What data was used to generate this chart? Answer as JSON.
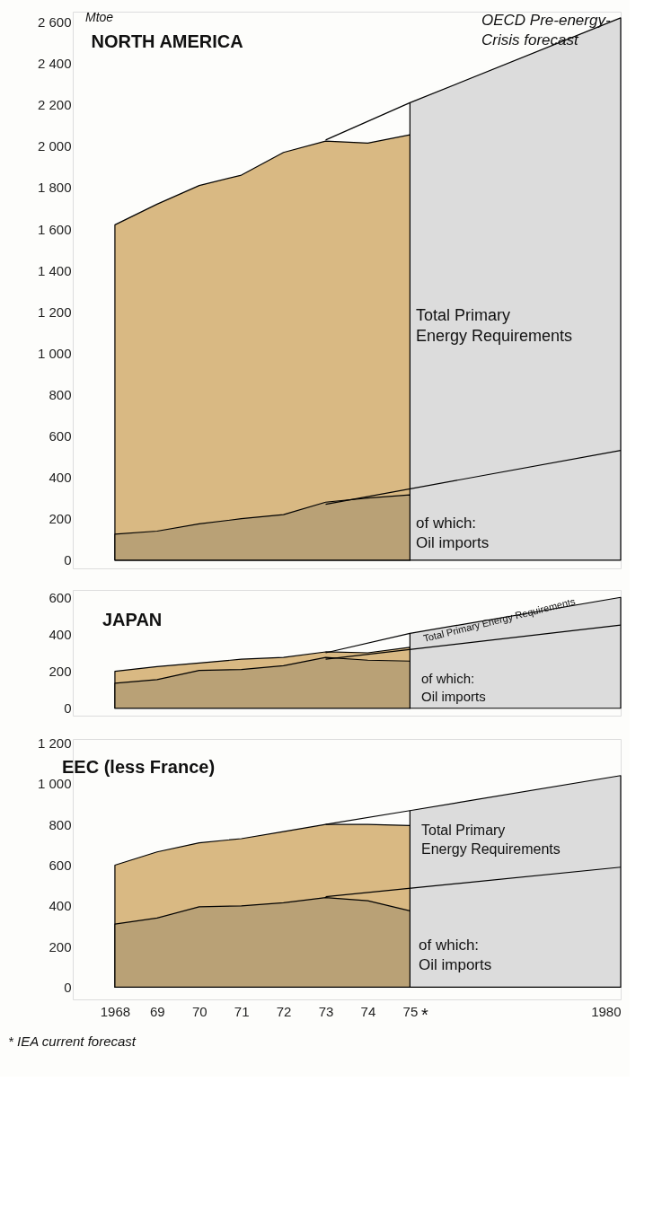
{
  "chart_data": [
    {
      "type": "area",
      "title": "NORTH AMERICA",
      "ylabel": "Mtoe",
      "xlim": [
        1967,
        1980
      ],
      "ylim": [
        -40,
        2650
      ],
      "yticks": [
        0,
        200,
        400,
        600,
        800,
        {
          "value": 1000,
          "label": "1 000"
        },
        {
          "value": 1200,
          "label": "1 200"
        },
        {
          "value": 1400,
          "label": "1 400"
        },
        {
          "value": 1600,
          "label": "1 600"
        },
        {
          "value": 1800,
          "label": "1 800"
        },
        {
          "value": 2000,
          "label": "2 000"
        },
        {
          "value": 2200,
          "label": "2 200"
        },
        {
          "value": 2400,
          "label": "2 400"
        },
        {
          "value": 2600,
          "label": "2 600"
        }
      ],
      "tick_labels": "y",
      "series": [
        {
          "color": "#dcdcdc",
          "x": [
            1975,
            1980
          ],
          "values": [
            2210,
            2620
          ]
        },
        {
          "color": "#d9b983",
          "x": [
            1968,
            1969,
            1970,
            1971,
            1972,
            1973,
            1974,
            1975
          ],
          "values": [
            1620,
            1720,
            1810,
            1860,
            1970,
            2025,
            2015,
            2055
          ]
        },
        {
          "color": "#b9a176",
          "x": [
            1968,
            1969,
            1970,
            1971,
            1972,
            1973,
            1974,
            1975
          ],
          "values": [
            125,
            140,
            175,
            200,
            220,
            280,
            300,
            315
          ]
        },
        {
          "type": "line",
          "color": "#000000",
          "x": [
            1973,
            1975
          ],
          "values": [
            2030,
            2210
          ]
        },
        {
          "type": "line",
          "color": "#000000",
          "x": [
            1973,
            1980
          ],
          "values": [
            270,
            530
          ]
        }
      ],
      "annotations": [
        "OECD Pre-energy-\nCrisis forecast",
        "Total Primary\nEnergy Requirements",
        "of which:\nOil imports"
      ]
    },
    {
      "type": "area",
      "title": "JAPAN",
      "xlim": [
        1967,
        1980
      ],
      "ylim": [
        -40,
        640
      ],
      "yticks": [
        0,
        200,
        400,
        600
      ],
      "tick_labels": "y",
      "series": [
        {
          "color": "#dcdcdc",
          "x": [
            1975,
            1980
          ],
          "values": [
            405,
            600
          ]
        },
        {
          "color": "#d9b983",
          "x": [
            1968,
            1969,
            1970,
            1971,
            1972,
            1973,
            1974,
            1975
          ],
          "values": [
            200,
            225,
            245,
            265,
            275,
            305,
            300,
            330
          ]
        },
        {
          "color": "#b9a176",
          "x": [
            1968,
            1969,
            1970,
            1971,
            1972,
            1973,
            1974,
            1975
          ],
          "values": [
            135,
            155,
            205,
            210,
            230,
            275,
            260,
            255
          ]
        },
        {
          "type": "line",
          "color": "#000000",
          "x": [
            1973,
            1975
          ],
          "values": [
            300,
            405
          ]
        },
        {
          "type": "line",
          "color": "#000000",
          "x": [
            1973,
            1980
          ],
          "values": [
            265,
            450
          ]
        }
      ],
      "annotations": [
        "Total Primary Energy Requirements",
        "of which:\nOil imports"
      ]
    },
    {
      "type": "area",
      "title": "EEC (less France)",
      "xlim": [
        1967,
        1980
      ],
      "ylim": [
        -60,
        1220
      ],
      "xticks": [
        1968,
        {
          "value": 1969,
          "label": "69"
        },
        {
          "value": 1970,
          "label": "70"
        },
        {
          "value": 1971,
          "label": "71"
        },
        {
          "value": 1972,
          "label": "72"
        },
        {
          "value": 1973,
          "label": "73"
        },
        {
          "value": 1974,
          "label": "74"
        },
        {
          "value": 1975,
          "label": "75"
        },
        1980
      ],
      "yticks": [
        0,
        200,
        400,
        600,
        800,
        {
          "value": 1000,
          "label": "1 000"
        },
        {
          "value": 1200,
          "label": "1 200"
        }
      ],
      "series": [
        {
          "color": "#dcdcdc",
          "x": [
            1975,
            1980
          ],
          "values": [
            868,
            1040
          ]
        },
        {
          "color": "#d9b983",
          "x": [
            1968,
            1969,
            1970,
            1971,
            1972,
            1973,
            1974,
            1975
          ],
          "values": [
            600,
            665,
            710,
            730,
            765,
            800,
            800,
            795
          ]
        },
        {
          "color": "#b9a176",
          "x": [
            1968,
            1969,
            1970,
            1971,
            1972,
            1973,
            1974,
            1975
          ],
          "values": [
            310,
            340,
            395,
            400,
            415,
            440,
            425,
            375
          ]
        },
        {
          "type": "line",
          "color": "#000000",
          "x": [
            1973,
            1975
          ],
          "values": [
            800,
            868
          ]
        },
        {
          "type": "line",
          "color": "#000000",
          "x": [
            1973,
            1980
          ],
          "values": [
            445,
            590
          ]
        }
      ],
      "annotations": [
        "Total Primary\nEnergy Requirements",
        "of which:\nOil imports",
        "*",
        "* IEA current forecast"
      ]
    }
  ]
}
